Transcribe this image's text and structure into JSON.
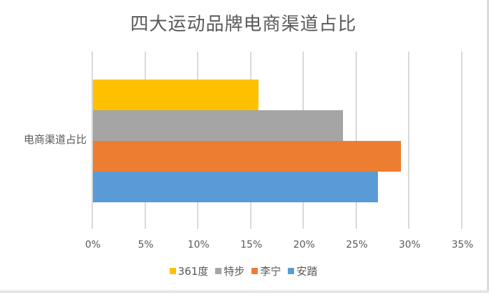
{
  "chart_data": {
    "type": "bar",
    "orientation": "horizontal",
    "title": "四大运动品牌电商渠道占比",
    "categories": [
      "电商渠道占比"
    ],
    "series": [
      {
        "name": "361度",
        "values": [
          0.157
        ],
        "color": "#FFC000"
      },
      {
        "name": "特步",
        "values": [
          0.237
        ],
        "color": "#A5A5A5"
      },
      {
        "name": "李宁",
        "values": [
          0.292
        ],
        "color": "#ED7D31"
      },
      {
        "name": "安踏",
        "values": [
          0.27
        ],
        "color": "#5B9BD5"
      }
    ],
    "xlabel": "",
    "ylabel": "",
    "xlim": [
      0,
      0.35
    ],
    "x_ticks": [
      "0%",
      "5%",
      "10%",
      "15%",
      "20%",
      "25%",
      "30%",
      "35%"
    ],
    "grid": "vertical",
    "legend_position": "bottom"
  },
  "title": "四大运动品牌电商渠道占比",
  "category_label": "电商渠道占比",
  "ticks": [
    "0%",
    "5%",
    "10%",
    "15%",
    "20%",
    "25%",
    "30%",
    "35%"
  ],
  "legend": [
    {
      "label": "361度",
      "color": "#FFC000"
    },
    {
      "label": "特步",
      "color": "#A5A5A5"
    },
    {
      "label": "李宁",
      "color": "#ED7D31"
    },
    {
      "label": "安踏",
      "color": "#5B9BD5"
    }
  ]
}
